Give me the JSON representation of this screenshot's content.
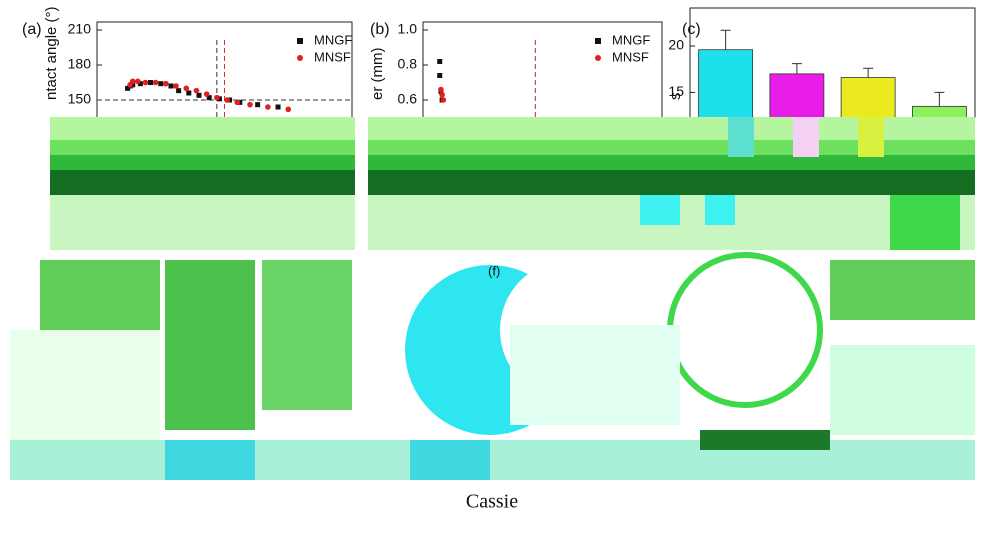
{
  "chart_data": [
    {
      "type": "scatter",
      "panel_label": "(a)",
      "y_label": "ntact angle (°)",
      "xlim": [
        0,
        100
      ],
      "ylim": [
        135,
        210
      ],
      "yticks": [
        210,
        180,
        150
      ],
      "hline": 150,
      "vlines": [
        {
          "value": 47,
          "color": "#333333"
        },
        {
          "value": 50,
          "color": "#e03030"
        }
      ],
      "series": [
        {
          "name": "MNGF",
          "color": "#111111",
          "marker": "square",
          "x": [
            12,
            13,
            14,
            17,
            21,
            25,
            29,
            32,
            36,
            40,
            44,
            48,
            52,
            56,
            63,
            71
          ],
          "values": [
            160,
            162,
            163,
            164,
            165,
            164,
            162,
            158,
            156,
            154,
            152,
            151,
            150,
            148,
            146,
            144
          ]
        },
        {
          "name": "MNSF",
          "color": "#e02020",
          "marker": "circle",
          "x": [
            13,
            14,
            16,
            19,
            23,
            27,
            31,
            35,
            39,
            43,
            47,
            51,
            55,
            60,
            67,
            75
          ],
          "values": [
            163,
            166,
            166,
            165,
            165,
            164,
            162,
            160,
            158,
            155,
            152,
            150,
            148,
            146,
            144,
            142
          ]
        }
      ]
    },
    {
      "type": "scatter",
      "panel_label": "(b)",
      "y_label": "er (mm)",
      "xlim": [
        0,
        100
      ],
      "ylim": [
        0.5,
        1.0
      ],
      "yticks": [
        {
          "value": 1,
          "label": "1.0"
        },
        0.8,
        0.6
      ],
      "vlines": [
        {
          "value": 47,
          "color": "#b03030"
        }
      ],
      "series": [
        {
          "name": "MNGF",
          "color": "#111111",
          "marker": "square",
          "x": [
            7,
            7,
            7.5,
            8
          ],
          "values": [
            0.82,
            0.74,
            0.65,
            0.6
          ]
        },
        {
          "name": "MNSF",
          "color": "#e02020",
          "marker": "circle",
          "x": [
            7.5,
            8,
            8.5
          ],
          "values": [
            0.66,
            0.63,
            0.6
          ]
        }
      ]
    },
    {
      "type": "bar",
      "panel_label": "(c)",
      "y_label": "s",
      "categories": [
        null,
        null,
        null,
        null
      ],
      "values": [
        19.6,
        17.0,
        16.6,
        13.5
      ],
      "errors": [
        2.1,
        1.1,
        1.0,
        1.5
      ],
      "colors": [
        "#1ee0ea",
        "#e81ee8",
        "#eaea1e",
        "#8ef05a"
      ],
      "ylim": [
        12.3,
        22.8
      ],
      "yticks": [
        20,
        15
      ]
    }
  ],
  "panel_label_f": "(f)",
  "caption": "Cassie"
}
